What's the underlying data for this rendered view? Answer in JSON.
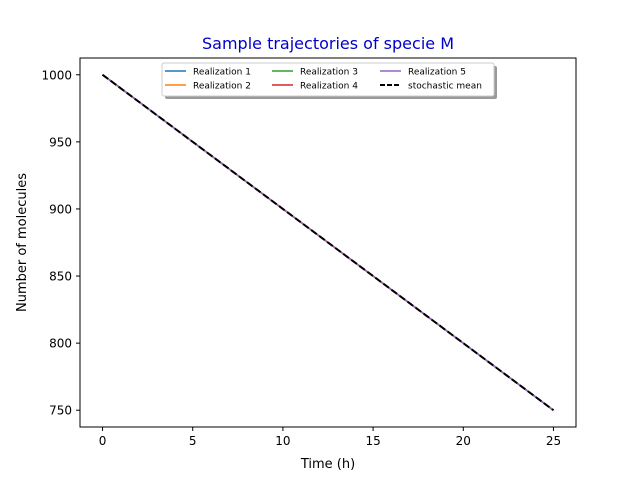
{
  "chart_data": {
    "type": "line",
    "title": "Sample trajectories of specie M",
    "title_color": "#0000cc",
    "xlabel": "Time (h)",
    "ylabel": "Number of molecules",
    "xlim": [
      -1.25,
      26.25
    ],
    "ylim": [
      737.5,
      1012.5
    ],
    "xticks": [
      0,
      5,
      10,
      15,
      20,
      25
    ],
    "yticks": [
      750,
      800,
      850,
      900,
      950,
      1000
    ],
    "xtick_labels": [
      "0",
      "5",
      "10",
      "15",
      "20",
      "25"
    ],
    "ytick_labels": [
      "750",
      "800",
      "850",
      "900",
      "950",
      "1000"
    ],
    "grid": false,
    "legend_position": "top-center",
    "series": [
      {
        "name": "Realization 1",
        "color": "#1f77b4",
        "dash": "solid",
        "x": [
          0,
          25
        ],
        "y": [
          1000,
          750
        ]
      },
      {
        "name": "Realization 2",
        "color": "#ff7f0e",
        "dash": "solid",
        "x": [
          0,
          25
        ],
        "y": [
          1000,
          750
        ]
      },
      {
        "name": "Realization 3",
        "color": "#2ca02c",
        "dash": "solid",
        "x": [
          0,
          25
        ],
        "y": [
          1000,
          750
        ]
      },
      {
        "name": "Realization 4",
        "color": "#d62728",
        "dash": "solid",
        "x": [
          0,
          25
        ],
        "y": [
          1000,
          750
        ]
      },
      {
        "name": "Realization 5",
        "color": "#9467bd",
        "dash": "solid",
        "x": [
          0,
          25
        ],
        "y": [
          1000,
          750
        ]
      },
      {
        "name": "stochastic mean",
        "color": "#000000",
        "dash": "dashed",
        "x": [
          0,
          25
        ],
        "y": [
          1000,
          750
        ]
      }
    ]
  }
}
